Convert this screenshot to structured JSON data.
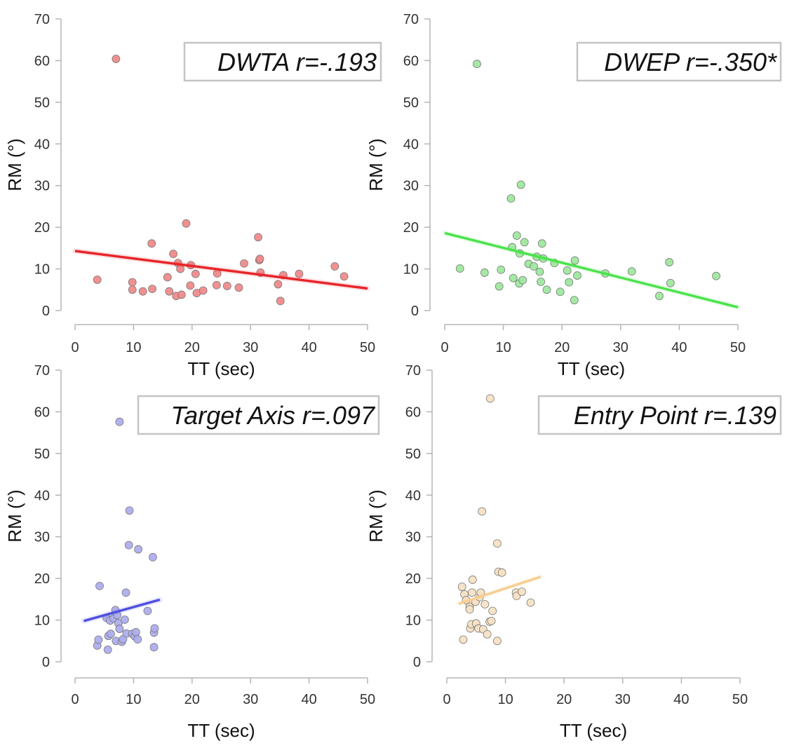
{
  "chart_data": [
    {
      "type": "scatter",
      "annotation": "DWTA r=-.193",
      "xlabel": "TT (sec)",
      "ylabel": "RM (°)",
      "xlim": [
        0,
        50
      ],
      "ylim": [
        0,
        70
      ],
      "xticks": [
        "0",
        "10",
        "20",
        "30",
        "40",
        "50"
      ],
      "yticks": [
        "0",
        "10",
        "20",
        "30",
        "40",
        "50",
        "60",
        "70"
      ],
      "color": "#f08a8a",
      "line_color": "#e8252a",
      "trend": {
        "x": [
          0,
          50
        ],
        "y": [
          14.3,
          5.3
        ]
      },
      "points": [
        [
          7,
          60.4
        ],
        [
          3.8,
          7.4
        ],
        [
          9.8,
          6.8
        ],
        [
          9.8,
          5.0
        ],
        [
          11.6,
          4.6
        ],
        [
          13.2,
          5.2
        ],
        [
          13.1,
          16.1
        ],
        [
          15.8,
          8.0
        ],
        [
          16.1,
          4.6
        ],
        [
          16.8,
          13.6
        ],
        [
          17.3,
          3.5
        ],
        [
          17.6,
          11.4
        ],
        [
          18.0,
          10.0
        ],
        [
          18.2,
          3.8
        ],
        [
          19.0,
          20.9
        ],
        [
          19.8,
          10.9
        ],
        [
          19.7,
          6.0
        ],
        [
          20.6,
          8.8
        ],
        [
          20.8,
          4.2
        ],
        [
          21.9,
          4.8
        ],
        [
          24.2,
          6.1
        ],
        [
          24.3,
          8.9
        ],
        [
          26.0,
          5.9
        ],
        [
          28.0,
          5.5
        ],
        [
          28.9,
          11.3
        ],
        [
          31.3,
          17.6
        ],
        [
          31.5,
          12.1
        ],
        [
          31.6,
          12.4
        ],
        [
          31.7,
          9.1
        ],
        [
          34.7,
          6.3
        ],
        [
          35.1,
          2.3
        ],
        [
          35.6,
          8.5
        ],
        [
          38.3,
          8.8
        ],
        [
          44.4,
          10.6
        ],
        [
          46.0,
          8.2
        ]
      ]
    },
    {
      "type": "scatter",
      "annotation": "DWEP r=-.350*",
      "xlabel": "TT (sec)",
      "ylabel": "RM (°)",
      "xlim": [
        0,
        50
      ],
      "ylim": [
        0,
        70
      ],
      "xticks": [
        "0",
        "10",
        "20",
        "30",
        "40",
        "50"
      ],
      "yticks": [
        "0",
        "10",
        "20",
        "30",
        "40",
        "50",
        "60",
        "70"
      ],
      "color": "#9ee89e",
      "line_color": "#4be34b",
      "trend": {
        "x": [
          0,
          50
        ],
        "y": [
          18.6,
          0.8
        ]
      },
      "points": [
        [
          5.5,
          59.2
        ],
        [
          2.6,
          10.1
        ],
        [
          6.8,
          9.1
        ],
        [
          9.3,
          5.8
        ],
        [
          9.6,
          9.8
        ],
        [
          11.3,
          26.9
        ],
        [
          11.5,
          15.2
        ],
        [
          11.7,
          7.8
        ],
        [
          12.3,
          18.0
        ],
        [
          12.7,
          6.5
        ],
        [
          12.8,
          13.7
        ],
        [
          13.0,
          30.2
        ],
        [
          13.3,
          7.3
        ],
        [
          13.6,
          16.4
        ],
        [
          14.3,
          11.2
        ],
        [
          15.2,
          10.6
        ],
        [
          15.7,
          12.9
        ],
        [
          16.2,
          9.3
        ],
        [
          16.4,
          6.9
        ],
        [
          16.6,
          16.1
        ],
        [
          16.8,
          12.5
        ],
        [
          17.4,
          5.0
        ],
        [
          18.7,
          11.4
        ],
        [
          19.7,
          4.5
        ],
        [
          20.9,
          9.6
        ],
        [
          21.2,
          6.8
        ],
        [
          22.1,
          2.5
        ],
        [
          22.2,
          12.0
        ],
        [
          22.6,
          8.4
        ],
        [
          27.4,
          8.9
        ],
        [
          31.9,
          9.4
        ],
        [
          36.6,
          3.5
        ],
        [
          38.3,
          11.6
        ],
        [
          38.5,
          6.6
        ],
        [
          46.3,
          8.3
        ]
      ]
    },
    {
      "type": "scatter",
      "annotation": "Target Axis r=.097",
      "xlabel": "TT (sec)",
      "ylabel": "RM (°)",
      "xlim": [
        0,
        50
      ],
      "ylim": [
        0,
        70
      ],
      "xticks": [
        "0",
        "10",
        "20",
        "30",
        "40",
        "50"
      ],
      "yticks": [
        "0",
        "10",
        "20",
        "30",
        "40",
        "50",
        "60",
        "70"
      ],
      "color": "#aeaeee",
      "line_color": "#5050e0",
      "trend": {
        "x": [
          1.5,
          14.5
        ],
        "y": [
          9.8,
          14.9
        ]
      },
      "points": [
        [
          7.6,
          57.6
        ],
        [
          3.8,
          3.9
        ],
        [
          4.0,
          5.3
        ],
        [
          4.2,
          18.2
        ],
        [
          5.4,
          10.5
        ],
        [
          5.6,
          2.9
        ],
        [
          5.7,
          6.2
        ],
        [
          6.0,
          9.9
        ],
        [
          6.1,
          6.7
        ],
        [
          6.6,
          10.4
        ],
        [
          6.9,
          12.4
        ],
        [
          7.0,
          5.0
        ],
        [
          7.2,
          11.2
        ],
        [
          7.4,
          9.3
        ],
        [
          7.6,
          7.9
        ],
        [
          8.0,
          4.8
        ],
        [
          8.2,
          5.4
        ],
        [
          8.5,
          10.1
        ],
        [
          8.7,
          16.6
        ],
        [
          8.8,
          6.8
        ],
        [
          9.2,
          28.0
        ],
        [
          9.3,
          36.3
        ],
        [
          9.8,
          6.7
        ],
        [
          10.2,
          6.1
        ],
        [
          10.4,
          7.1
        ],
        [
          10.7,
          5.4
        ],
        [
          10.8,
          27.0
        ],
        [
          12.4,
          12.2
        ],
        [
          13.3,
          25.1
        ],
        [
          13.5,
          3.5
        ],
        [
          13.5,
          7.0
        ],
        [
          13.6,
          8.0
        ]
      ]
    },
    {
      "type": "scatter",
      "annotation": "Entry Point r=.139",
      "xlabel": "TT (sec)",
      "ylabel": "RM (°)",
      "xlim": [
        0,
        50
      ],
      "ylim": [
        0,
        70
      ],
      "xticks": [
        "0",
        "10",
        "20",
        "30",
        "40",
        "50"
      ],
      "yticks": [
        "0",
        "10",
        "20",
        "30",
        "40",
        "50",
        "60",
        "70"
      ],
      "color": "#f7e2c4",
      "line_color": "#f7cd90",
      "trend": {
        "x": [
          2.0,
          16.0
        ],
        "y": [
          13.9,
          20.4
        ]
      },
      "points": [
        [
          7.4,
          63.2
        ],
        [
          6.0,
          36.1
        ],
        [
          8.6,
          28.4
        ],
        [
          2.8,
          5.3
        ],
        [
          2.6,
          18.0
        ],
        [
          3.0,
          16.2
        ],
        [
          3.3,
          14.8
        ],
        [
          3.9,
          13.2
        ],
        [
          3.9,
          12.6
        ],
        [
          4.0,
          8.0
        ],
        [
          4.2,
          9.0
        ],
        [
          4.3,
          16.6
        ],
        [
          4.4,
          19.7
        ],
        [
          4.9,
          14.4
        ],
        [
          5.0,
          9.2
        ],
        [
          5.4,
          8.0
        ],
        [
          5.6,
          15.5
        ],
        [
          5.8,
          16.6
        ],
        [
          6.2,
          7.8
        ],
        [
          6.5,
          13.8
        ],
        [
          6.9,
          6.6
        ],
        [
          7.3,
          9.6
        ],
        [
          7.6,
          9.8
        ],
        [
          7.8,
          12.2
        ],
        [
          8.6,
          5.0
        ],
        [
          8.8,
          21.6
        ],
        [
          9.4,
          21.4
        ],
        [
          11.8,
          16.6
        ],
        [
          11.9,
          15.8
        ],
        [
          12.8,
          16.8
        ],
        [
          14.3,
          14.2
        ]
      ]
    }
  ]
}
